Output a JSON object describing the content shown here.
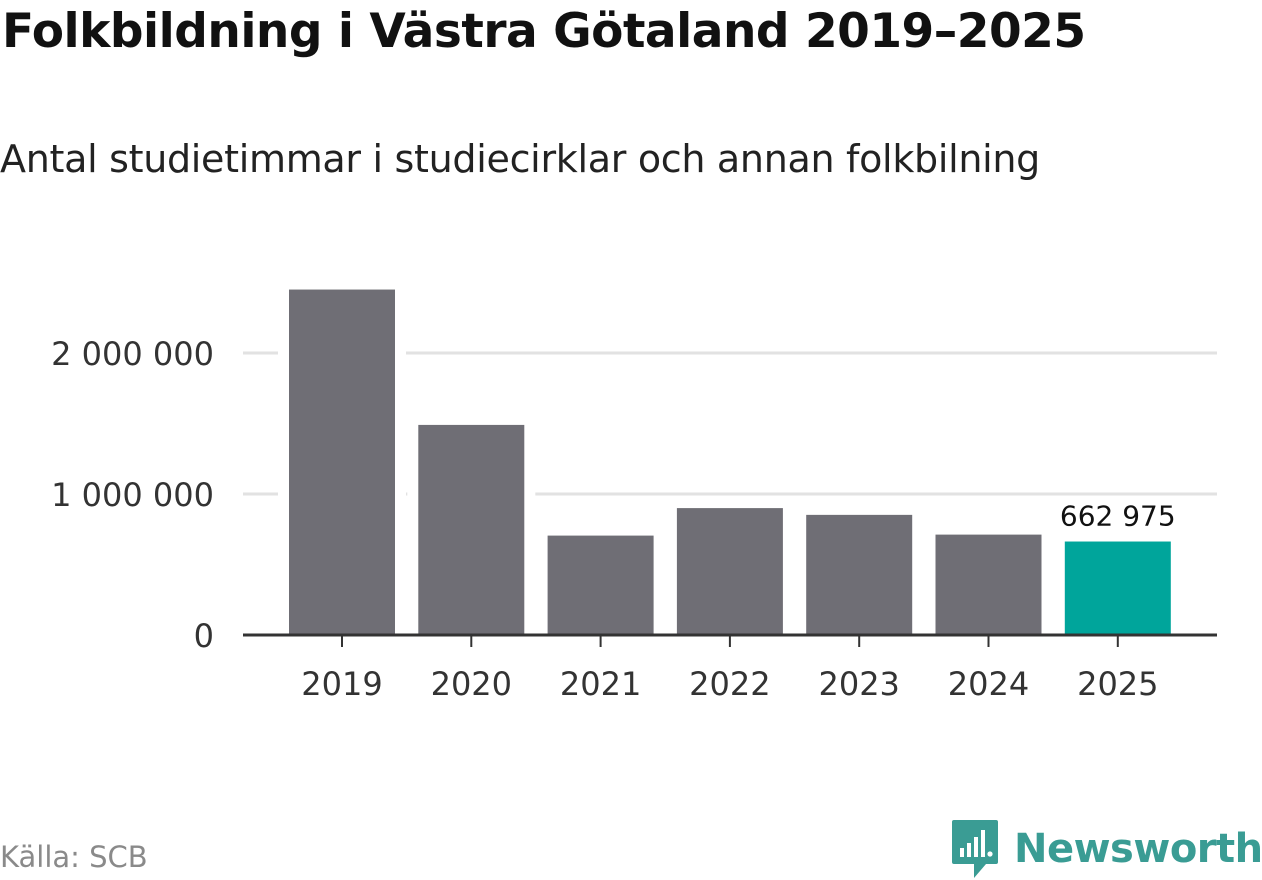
{
  "header": {
    "title": "Folkbildning i Västra Götaland 2019–2025",
    "subtitle": "Antal studietimmar i studiecirklar och annan folkbilning"
  },
  "footer": {
    "source": "Källa: SCB",
    "brand": "Newsworthy"
  },
  "colors": {
    "bar": "#6f6e75",
    "highlight": "#00a59b",
    "grid": "#e2e2e2",
    "axis": "#333333",
    "brand": "#3a9c94"
  },
  "icons": {
    "brand_logo": "newsworthy-logo-icon"
  },
  "chart_data": {
    "type": "bar",
    "title": "Folkbildning i Västra Götaland 2019–2025",
    "subtitle": "Antal studietimmar i studiecirklar och annan folkbilning",
    "xlabel": "",
    "ylabel": "",
    "categories": [
      "2019",
      "2020",
      "2021",
      "2022",
      "2023",
      "2024",
      "2025"
    ],
    "values": [
      2450000,
      1490000,
      705000,
      900000,
      852000,
      712000,
      662975
    ],
    "highlight_index": 6,
    "data_labels": [
      {
        "index": 6,
        "text": "662 975"
      }
    ],
    "ylim": [
      0,
      2450000
    ],
    "yticks": [
      {
        "value": 0,
        "label": "0"
      },
      {
        "value": 1000000,
        "label": "1 000 000"
      },
      {
        "value": 2000000,
        "label": "2 000 000"
      }
    ],
    "grid": true,
    "legend": "none"
  }
}
